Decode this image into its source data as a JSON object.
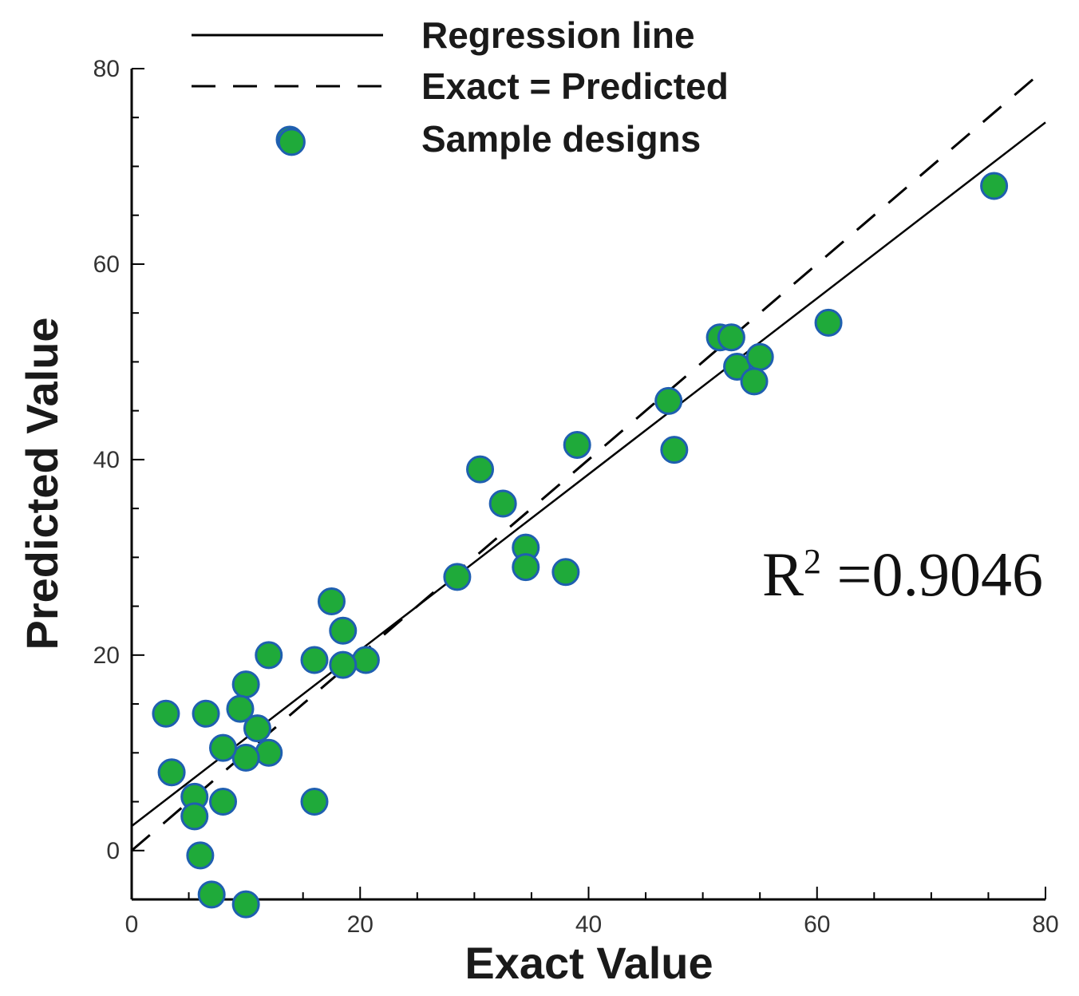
{
  "chart_data": {
    "type": "scatter",
    "xlabel": "Exact Value",
    "ylabel": "Predicted Value",
    "xlim": [
      0,
      80
    ],
    "ylim": [
      -5,
      80
    ],
    "x_ticks": [
      0,
      20,
      40,
      60,
      80
    ],
    "y_ticks": [
      0,
      20,
      40,
      60,
      80
    ],
    "x_tick_labels": [
      "0",
      "20",
      "40",
      "60",
      "80"
    ],
    "y_tick_labels": [
      "0",
      "20",
      "40",
      "60",
      "80"
    ],
    "grid": false,
    "legend_position": "top",
    "legend": {
      "regression": "Regression line",
      "exact": "Exact = Predicted",
      "samples": "Sample designs"
    },
    "annotation": {
      "prefix": "R",
      "superscript": "2",
      "value_text": " =0.9046"
    },
    "regression_line": {
      "slope": 0.9,
      "intercept": 2.5,
      "x_range": [
        0,
        80
      ]
    },
    "identity_line": {
      "x_range": [
        0,
        80
      ]
    },
    "colors": {
      "marker_fill": "#1faa3a",
      "marker_edge": "#1f5fb0",
      "line": "#000000"
    },
    "series": [
      {
        "name": "Sample designs",
        "x": [
          14,
          75.5,
          61,
          51.5,
          52.5,
          53,
          55,
          54.5,
          47,
          47.5,
          39,
          30.5,
          32.5,
          34.5,
          34.5,
          38,
          28.5,
          17.5,
          18.5,
          20.5,
          18.5,
          16,
          12,
          3,
          6.5,
          10,
          9.5,
          11,
          12,
          10,
          8,
          3.5,
          5.5,
          8,
          5.5,
          6,
          16,
          7,
          10
        ],
        "y": [
          72.5,
          68,
          54,
          52.5,
          52.5,
          49.5,
          50.5,
          48,
          46,
          41,
          41.5,
          39,
          35.5,
          31,
          29,
          28.5,
          28,
          25.5,
          22.5,
          19.5,
          19,
          19.5,
          20,
          14,
          14,
          17,
          14.5,
          12.5,
          10,
          9.5,
          10.5,
          8,
          5.5,
          5,
          3.5,
          -0.5,
          5,
          -4.5,
          -5.5
        ]
      }
    ]
  }
}
